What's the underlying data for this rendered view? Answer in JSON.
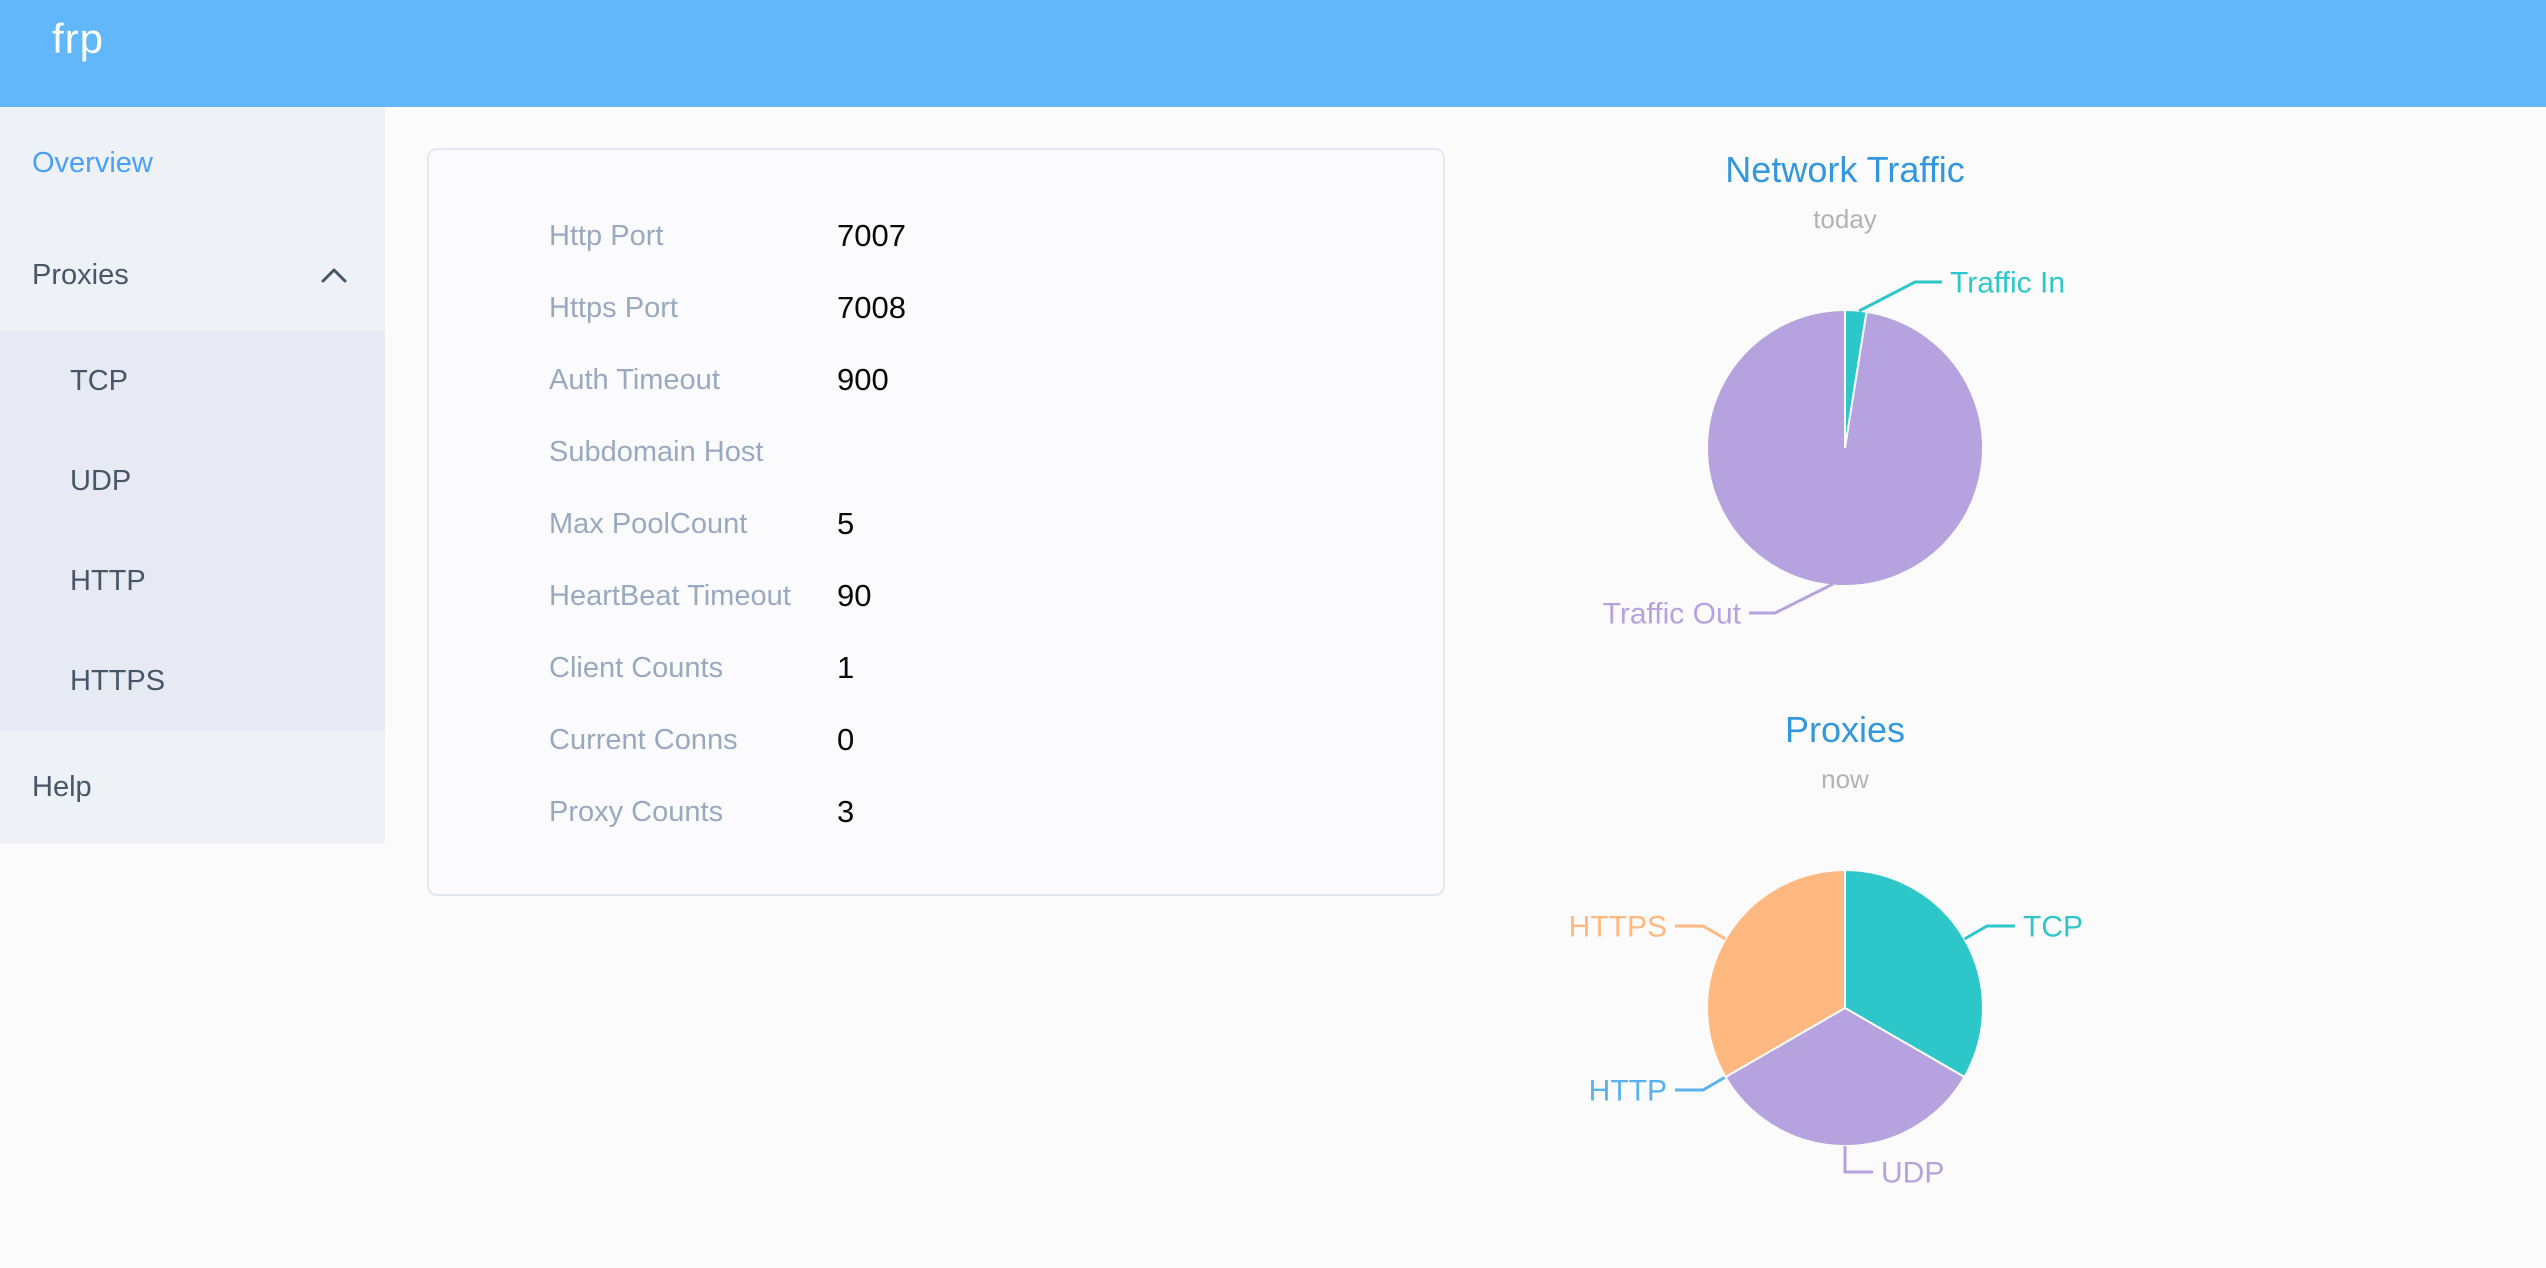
{
  "header": {
    "logo": "frp"
  },
  "theme": {
    "header_bg": "#61b7fa",
    "sidebar_bg": "#eef1f6",
    "submenu_bg": "#e7eaf3",
    "active_item": "#4aa0f8",
    "chart_title": "#3398db",
    "label_gray": "#99a9bf"
  },
  "sidebar": {
    "overview": "Overview",
    "proxies": "Proxies",
    "proxy_types": [
      "TCP",
      "UDP",
      "HTTP",
      "HTTPS"
    ],
    "help": "Help"
  },
  "config": {
    "rows": [
      {
        "label": "Http Port",
        "value": "7007"
      },
      {
        "label": "Https Port",
        "value": "7008"
      },
      {
        "label": "Auth Timeout",
        "value": "900"
      },
      {
        "label": "Subdomain Host",
        "value": ""
      },
      {
        "label": "Max PoolCount",
        "value": "5"
      },
      {
        "label": "HeartBeat Timeout",
        "value": "90"
      },
      {
        "label": "Client Counts",
        "value": "1"
      },
      {
        "label": "Current Conns",
        "value": "0"
      },
      {
        "label": "Proxy Counts",
        "value": "3"
      }
    ]
  },
  "chart_data": [
    {
      "type": "pie",
      "title": "Network Traffic",
      "subtitle": "today",
      "unit": "percent",
      "legend_position": "callout-labels",
      "series": [
        {
          "name": "Traffic In",
          "value": 2.5,
          "color": "#2ec7c9"
        },
        {
          "name": "Traffic Out",
          "value": 97.5,
          "color": "#b6a2de"
        }
      ]
    },
    {
      "type": "pie",
      "title": "Proxies",
      "subtitle": "now",
      "unit": "count",
      "legend_position": "callout-labels",
      "series": [
        {
          "name": "TCP",
          "value": 1,
          "color": "#2ec7c9"
        },
        {
          "name": "UDP",
          "value": 1,
          "color": "#b6a2de"
        },
        {
          "name": "HTTP",
          "value": 0,
          "color": "#5ab1ef"
        },
        {
          "name": "HTTPS",
          "value": 1,
          "color": "#ffb980"
        }
      ]
    }
  ]
}
